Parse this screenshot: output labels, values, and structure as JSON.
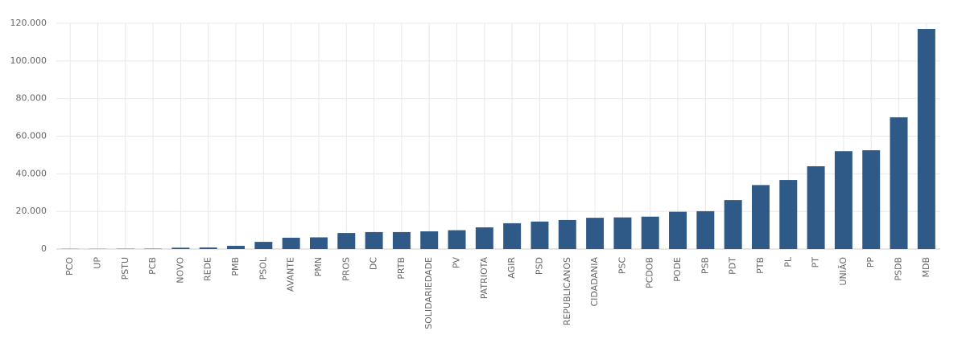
{
  "chart_data": {
    "type": "bar",
    "categories": [
      "PCO",
      "UP",
      "PSTU",
      "PCB",
      "NOVO",
      "REDE",
      "PMB",
      "PSOL",
      "AVANTE",
      "PMN",
      "PROS",
      "DC",
      "PRTB",
      "SOLIDARIEDADE",
      "PV",
      "PATRIOTA",
      "AGIR",
      "PSD",
      "REPUBLICANOS",
      "CIDADANIA",
      "PSC",
      "PCDOB",
      "PODE",
      "PSB",
      "PDT",
      "PTB",
      "PL",
      "PT",
      "UNIÃO",
      "PP",
      "PSDB",
      "MDB"
    ],
    "values": [
      100,
      100,
      150,
      200,
      700,
      800,
      1700,
      3800,
      6000,
      6200,
      8500,
      9000,
      9000,
      9400,
      10000,
      11500,
      13700,
      14600,
      15400,
      16600,
      16800,
      17200,
      19800,
      20100,
      26000,
      34000,
      36700,
      44000,
      52000,
      52500,
      70000,
      117000
    ],
    "color": "#2f5a87",
    "ylim": [
      0,
      120000
    ],
    "yticks": [
      0,
      {
        "value": 20000,
        "label": "20.000"
      },
      {
        "value": 40000,
        "label": "40.000"
      },
      {
        "value": 60000,
        "label": "60.000"
      },
      {
        "value": 80000,
        "label": "80.000"
      },
      {
        "value": 100000,
        "label": "100.000"
      },
      {
        "value": 120000,
        "label": "120.000"
      }
    ],
    "grid": true
  }
}
